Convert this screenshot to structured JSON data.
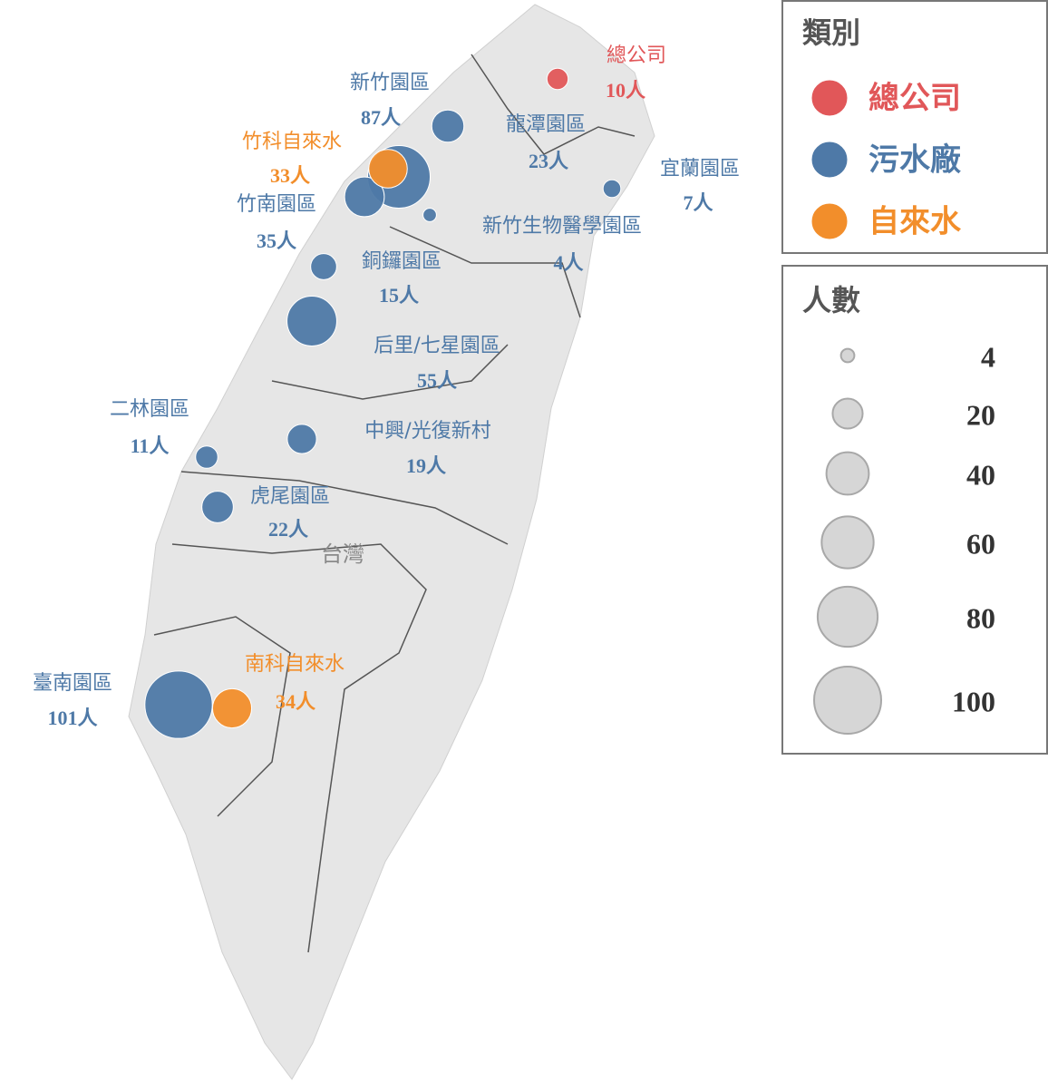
{
  "map_label": "台灣",
  "legend_category": {
    "title": "類別",
    "items": [
      {
        "name": "總公司",
        "color": "#e15759"
      },
      {
        "name": "污水廠",
        "color": "#4e79a7"
      },
      {
        "name": "自來水",
        "color": "#f28e2b"
      }
    ]
  },
  "legend_size": {
    "title": "人數",
    "values": [
      4,
      20,
      40,
      60,
      80,
      100
    ]
  },
  "points": [
    {
      "name": "總公司",
      "category": 0,
      "value": 10,
      "value_label": "10人"
    },
    {
      "name": "新竹園區",
      "category": 1,
      "value": 87,
      "value_label": "87人"
    },
    {
      "name": "龍潭園區",
      "category": 1,
      "value": 23,
      "value_label": "23人"
    },
    {
      "name": "竹科自來水",
      "category": 2,
      "value": 33,
      "value_label": "33人"
    },
    {
      "name": "竹南園區",
      "category": 1,
      "value": 35,
      "value_label": "35人"
    },
    {
      "name": "新竹生物醫學園區",
      "category": 1,
      "value": 4,
      "value_label": "4人"
    },
    {
      "name": "宜蘭園區",
      "category": 1,
      "value": 7,
      "value_label": "7人"
    },
    {
      "name": "銅鑼園區",
      "category": 1,
      "value": 15,
      "value_label": "15人"
    },
    {
      "name": "后里/七星園區",
      "category": 1,
      "value": 55,
      "value_label": "55人"
    },
    {
      "name": "二林園區",
      "category": 1,
      "value": 11,
      "value_label": "11人"
    },
    {
      "name": "中興/光復新村",
      "category": 1,
      "value": 19,
      "value_label": "19人"
    },
    {
      "name": "虎尾園區",
      "category": 1,
      "value": 22,
      "value_label": "22人"
    },
    {
      "name": "臺南園區",
      "category": 1,
      "value": 101,
      "value_label": "101人"
    },
    {
      "name": "南科自來水",
      "category": 2,
      "value": 34,
      "value_label": "34人"
    }
  ]
}
